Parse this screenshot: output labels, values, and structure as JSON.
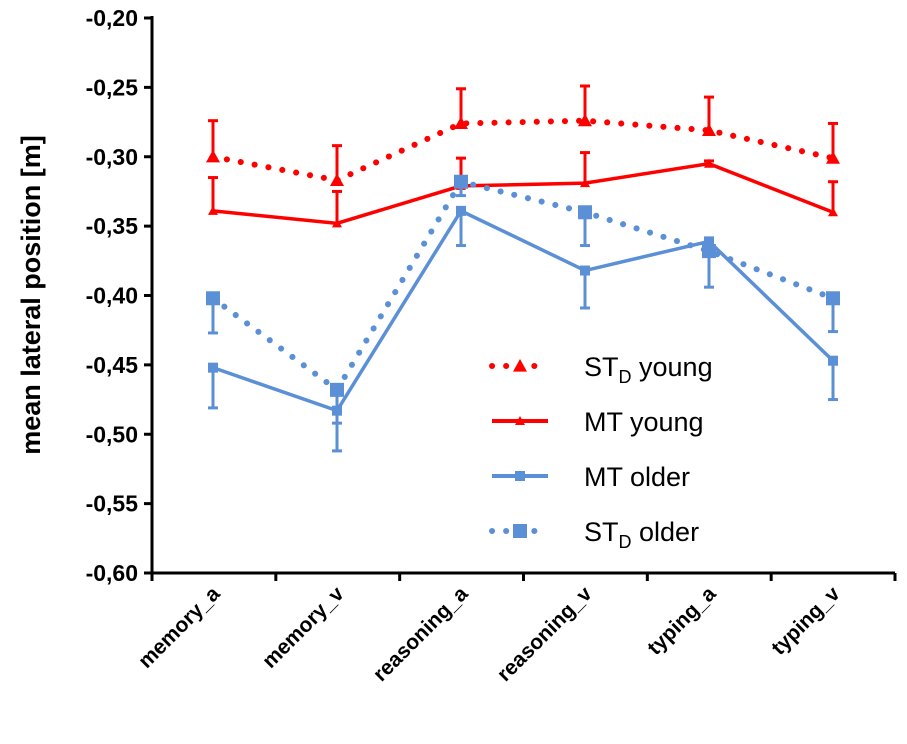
{
  "chart_data": {
    "type": "line",
    "title": "",
    "xlabel": "",
    "ylabel": "mean lateral position [m]",
    "ylim": [
      -0.6,
      -0.2
    ],
    "yticks": [
      "-0,20",
      "-0,25",
      "-0,30",
      "-0,35",
      "-0,40",
      "-0,45",
      "-0,50",
      "-0,55",
      "-0,60"
    ],
    "ytick_values": [
      -0.2,
      -0.25,
      -0.3,
      -0.35,
      -0.4,
      -0.45,
      -0.5,
      -0.55,
      -0.6
    ],
    "categories": [
      "memory_a",
      "memory_v",
      "reasoning_a",
      "reasoning_v",
      "typing_a",
      "typing_v"
    ],
    "grid": false,
    "legend_position": "bottom-right",
    "series": [
      {
        "name": "ST_D young",
        "label_main": "ST",
        "label_sub": "D",
        "label_rest": " young",
        "color": "#ff0000",
        "style": "dotted",
        "marker": "triangle",
        "error_dir": "up",
        "values": [
          -0.3,
          -0.317,
          -0.276,
          -0.274,
          -0.281,
          -0.301
        ],
        "errors": [
          0.026,
          0.025,
          0.025,
          0.025,
          0.024,
          0.025
        ]
      },
      {
        "name": "MT young",
        "label_main": "MT young",
        "label_sub": "",
        "label_rest": "",
        "color": "#ff0000",
        "style": "solid",
        "marker": "triangle",
        "error_dir": "up",
        "values": [
          -0.339,
          -0.348,
          -0.321,
          -0.319,
          -0.305,
          -0.34
        ],
        "errors": [
          0.024,
          0.023,
          0.02,
          0.022,
          0.002,
          0.022
        ]
      },
      {
        "name": "MT older",
        "label_main": "MT older",
        "label_sub": "",
        "label_rest": "",
        "color": "#5b8fd6",
        "style": "solid",
        "marker": "square",
        "error_dir": "down",
        "values": [
          -0.452,
          -0.483,
          -0.339,
          -0.382,
          -0.361,
          -0.447
        ],
        "errors": [
          0.029,
          0.029,
          0.025,
          0.027,
          0.004,
          0.028
        ]
      },
      {
        "name": "ST_D older",
        "label_main": "ST",
        "label_sub": "D",
        "label_rest": " older",
        "color": "#5b8fd6",
        "style": "dotted",
        "marker": "square",
        "error_dir": "down",
        "values": [
          -0.402,
          -0.468,
          -0.318,
          -0.34,
          -0.368,
          -0.402
        ],
        "errors": [
          0.025,
          0.024,
          0.01,
          0.024,
          0.026,
          0.024
        ]
      }
    ]
  }
}
